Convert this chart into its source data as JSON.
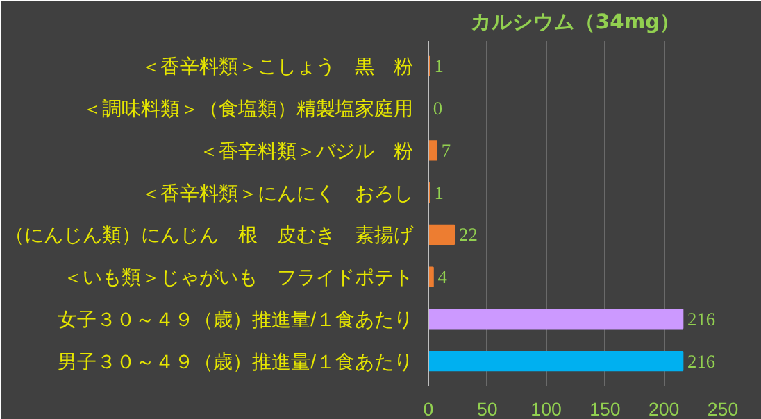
{
  "chart_data": {
    "type": "bar",
    "orientation": "horizontal",
    "title": "カルシウム（34mg）",
    "categories": [
      "＜香辛料類＞こしょう　黒　粉",
      "＜調味料類＞（食塩類）精製塩家庭用",
      "＜香辛料類＞バジル　粉",
      "＜香辛料類＞にんにく　おろし",
      "（にんじん類）にんじん　根　皮むき　素揚げ",
      "＜いも類＞じゃがいも　フライドポテト",
      "女子３０～４９（歳）推進量/１食あたり",
      "男子３０～４９（歳）推進量/１食あたり"
    ],
    "values": [
      1,
      0,
      7,
      1,
      22,
      4,
      216,
      216
    ],
    "colors": [
      "#ed7d31",
      "#ed7d31",
      "#ed7d31",
      "#ed7d31",
      "#ed7d31",
      "#ed7d31",
      "#cc99ff",
      "#00b0f0"
    ],
    "xlim": [
      0,
      250
    ],
    "xticks": [
      0,
      50,
      100,
      150,
      200,
      250
    ],
    "grid": "x",
    "data_labels": true
  }
}
